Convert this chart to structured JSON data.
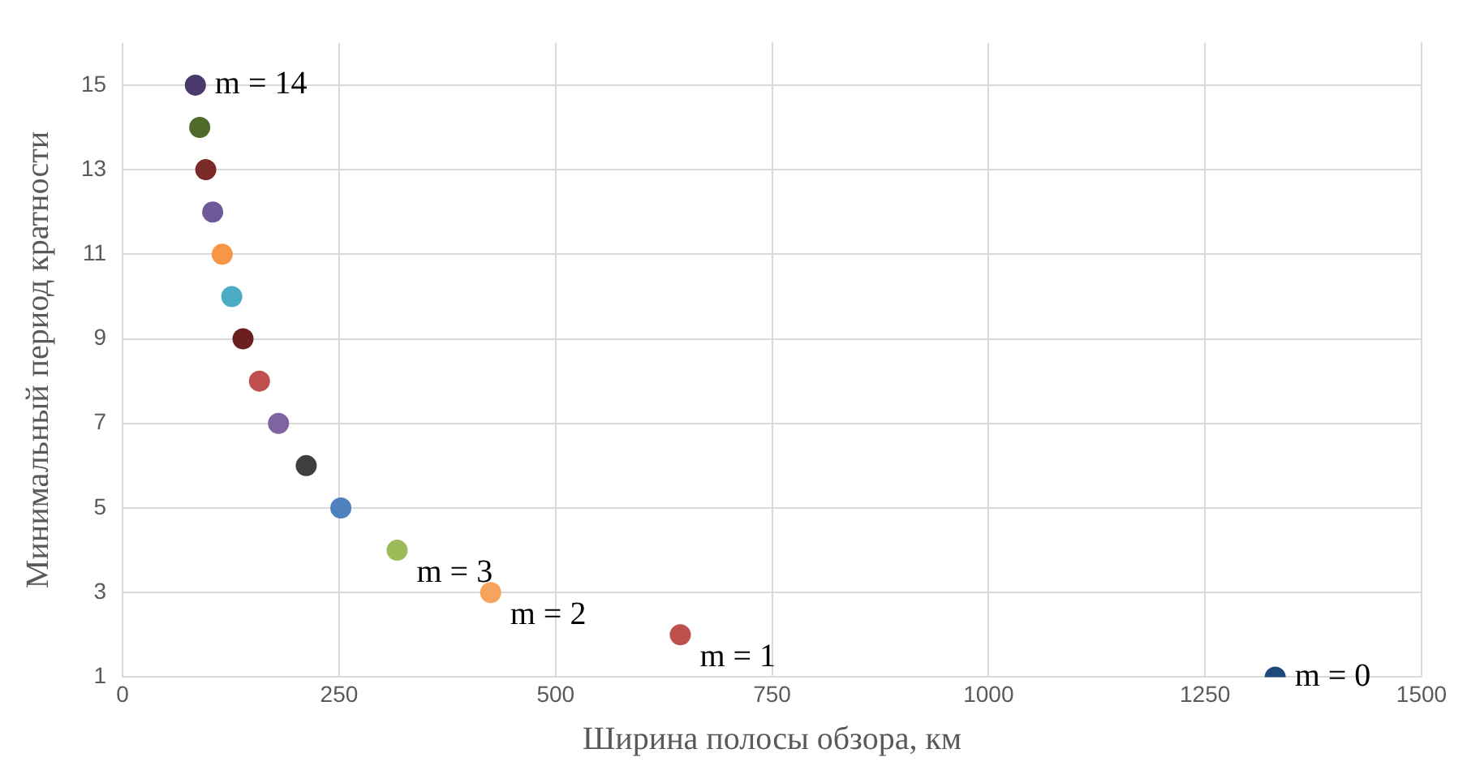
{
  "chart_data": {
    "type": "scatter",
    "xlabel": "Ширина полосы обзора, км",
    "ylabel": "Минимальный период кратности",
    "x": [
      84,
      89,
      96,
      104,
      115,
      126,
      139,
      158,
      180,
      212,
      252,
      317,
      425,
      644,
      1331
    ],
    "values": [
      15,
      14,
      13,
      12,
      11,
      10,
      9,
      8,
      7,
      6,
      5,
      4,
      3,
      2,
      1
    ],
    "colors": [
      "#4b3a6b",
      "#4f6b2a",
      "#7b2b27",
      "#6e5a9a",
      "#f79646",
      "#4bacc6",
      "#6b1f1f",
      "#c0504d",
      "#8064a2",
      "#3f3f3f",
      "#4f81bd",
      "#9bbb59",
      "#f7a35c",
      "#c0504d",
      "#1f497d"
    ],
    "xlim": [
      0,
      1500
    ],
    "xticks": [
      0,
      250,
      500,
      750,
      1000,
      1250,
      1500
    ],
    "ylim": [
      1,
      16
    ],
    "yticks": [
      1,
      3,
      5,
      7,
      9,
      11,
      13,
      15
    ],
    "annotations": [
      {
        "text": "m = 14",
        "x": 84,
        "y": 15
      },
      {
        "text": "m = 3",
        "x": 317,
        "y": 4
      },
      {
        "text": "m = 2",
        "x": 425,
        "y": 3
      },
      {
        "text": "m = 1",
        "x": 644,
        "y": 2
      },
      {
        "text": "m = 0",
        "x": 1331,
        "y": 1
      }
    ],
    "grid": true,
    "legend": false,
    "marker": "circle"
  }
}
